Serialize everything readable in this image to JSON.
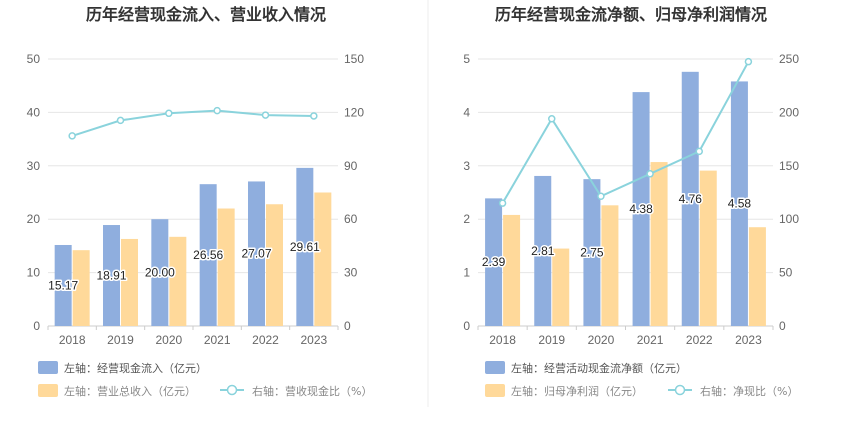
{
  "colors": {
    "bar_primary": "#8faede",
    "bar_secondary": "#ffd99a",
    "line": "#8ad3dc",
    "grid": "#e6e6e6",
    "divider": "#eeeeee"
  },
  "chart_data": [
    {
      "type": "bar",
      "title": "历年经营现金流入、营业收入情况",
      "categories": [
        "2018",
        "2019",
        "2020",
        "2021",
        "2022",
        "2023"
      ],
      "left_axis": {
        "ticks": [
          "0",
          "10",
          "20",
          "30",
          "40",
          "50"
        ],
        "ylim": [
          0,
          50
        ]
      },
      "right_axis": {
        "ticks": [
          "0",
          "30",
          "60",
          "90",
          "120",
          "150"
        ],
        "ylim": [
          0,
          150
        ]
      },
      "series": [
        {
          "name": "左轴：经营现金流入（亿元）",
          "axis": "left",
          "kind": "bar",
          "values": [
            15.17,
            18.91,
            20.0,
            26.56,
            27.07,
            29.61
          ],
          "labels": [
            "15.17",
            "18.91",
            "20.00",
            "26.56",
            "27.07",
            "29.61"
          ]
        },
        {
          "name": "左轴：营业总收入（亿元）",
          "axis": "left",
          "kind": "bar",
          "values": [
            14.2,
            16.3,
            16.7,
            22.0,
            22.8,
            25.0
          ]
        },
        {
          "name": "右轴：营收现金比（%）",
          "axis": "right",
          "kind": "line",
          "values": [
            106.8,
            115.5,
            119.5,
            121.0,
            118.5,
            118.0
          ]
        }
      ]
    },
    {
      "type": "bar",
      "title": "历年经营现金流净额、归母净利润情况",
      "categories": [
        "2018",
        "2019",
        "2020",
        "2021",
        "2022",
        "2023"
      ],
      "left_axis": {
        "ticks": [
          "0",
          "1",
          "2",
          "3",
          "4",
          "5"
        ],
        "ylim": [
          0,
          5
        ]
      },
      "right_axis": {
        "ticks": [
          "0",
          "50",
          "100",
          "150",
          "200",
          "250"
        ],
        "ylim": [
          0,
          250
        ]
      },
      "series": [
        {
          "name": "左轴：经营活动现金流净额（亿元）",
          "axis": "left",
          "kind": "bar",
          "values": [
            2.39,
            2.81,
            2.75,
            4.38,
            4.76,
            4.58
          ],
          "labels": [
            "2.39",
            "2.81",
            "2.75",
            "4.38",
            "4.76",
            "4.58"
          ]
        },
        {
          "name": "左轴：归母净利润（亿元）",
          "axis": "left",
          "kind": "bar",
          "values": [
            2.08,
            1.45,
            2.26,
            3.07,
            2.91,
            1.85
          ]
        },
        {
          "name": "右轴：净现比（%）",
          "axis": "right",
          "kind": "line",
          "values": [
            115.0,
            194.0,
            121.5,
            142.5,
            163.5,
            247.5
          ]
        }
      ]
    }
  ]
}
